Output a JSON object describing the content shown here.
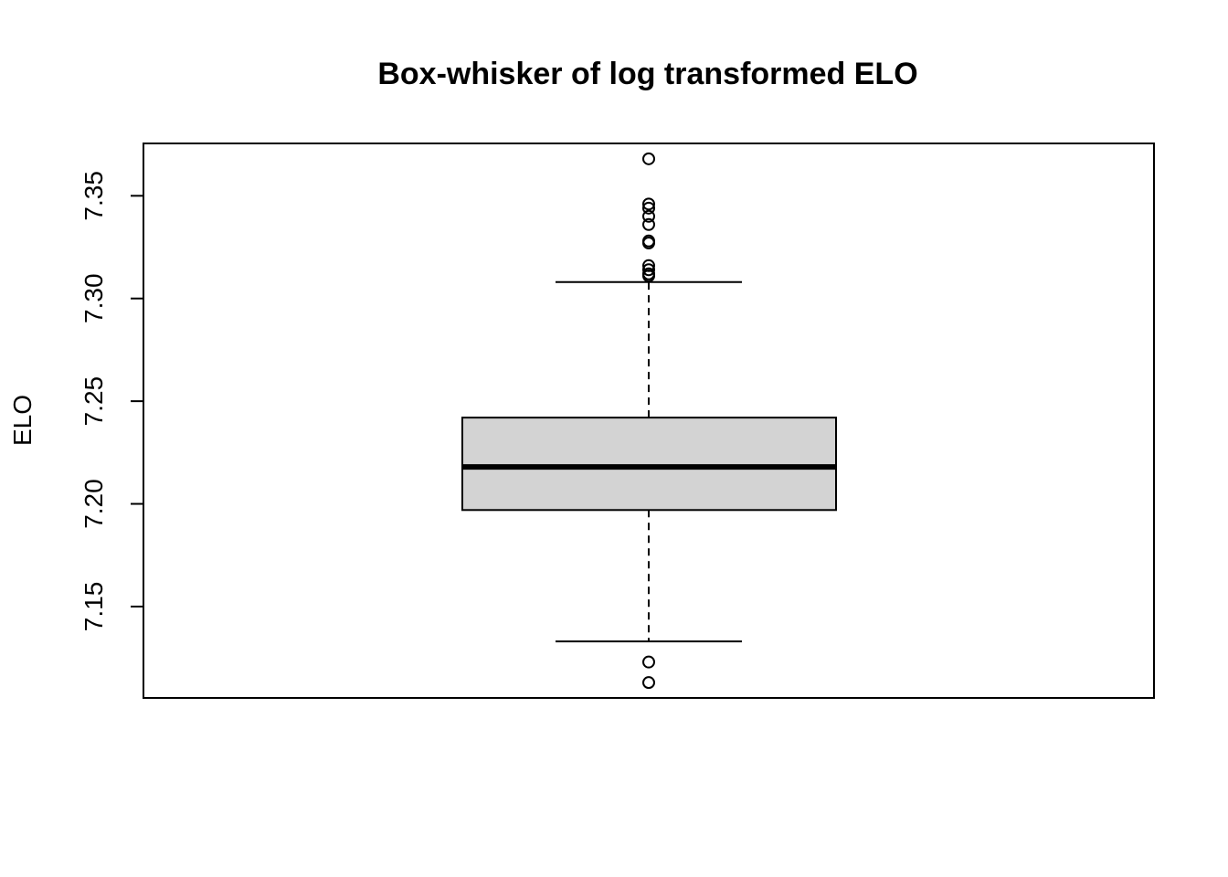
{
  "chart_data": {
    "type": "boxplot",
    "title": "Box-whisker of log transformed ELO",
    "xlabel": "",
    "ylabel": "ELO",
    "ylim": [
      7.1055,
      7.3755
    ],
    "yticks": [
      "7.15",
      "7.20",
      "7.25",
      "7.30",
      "7.35"
    ],
    "ytick_values": [
      7.15,
      7.2,
      7.25,
      7.3,
      7.35
    ],
    "grid": false,
    "box": {
      "lower_whisker": 7.133,
      "q1": 7.197,
      "median": 7.218,
      "q3": 7.242,
      "upper_whisker": 7.308,
      "outliers": [
        7.368,
        7.346,
        7.344,
        7.34,
        7.336,
        7.328,
        7.327,
        7.316,
        7.314,
        7.312,
        7.311,
        7.123,
        7.113
      ]
    },
    "colors": {
      "box_fill": "#d3d3d3",
      "stroke": "#000000"
    }
  }
}
